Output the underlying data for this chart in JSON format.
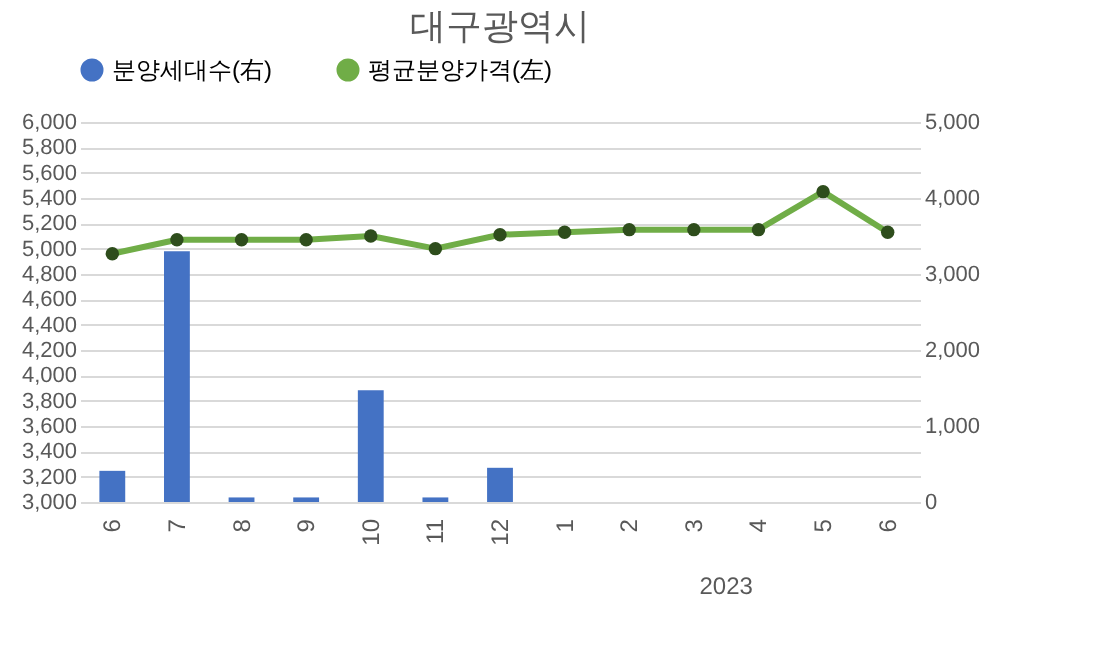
{
  "chart_data": {
    "type": "bar",
    "title": "대구광역시",
    "categories": [
      "6",
      "7",
      "8",
      "9",
      "10",
      "11",
      "12",
      "1",
      "2",
      "3",
      "4",
      "5",
      "6"
    ],
    "series": [
      {
        "name": "분양세대수(右)",
        "axis": "y2",
        "color": "#4472c4",
        "values": [
          410,
          3300,
          60,
          60,
          1470,
          60,
          450,
          null,
          null,
          null,
          null,
          null,
          null
        ]
      },
      {
        "name": "평균분양가격(左)",
        "type": "line",
        "axis": "y",
        "color": "#70ad47",
        "values": [
          4960,
          5070,
          5070,
          5070,
          5100,
          5000,
          5110,
          5130,
          5150,
          5150,
          5150,
          5450,
          5130
        ]
      }
    ],
    "ylim": [
      3000,
      6000
    ],
    "yticks": [
      {
        "value": 3000,
        "label": "3,000"
      },
      {
        "value": 3200,
        "label": "3,200"
      },
      {
        "value": 3400,
        "label": "3,400"
      },
      {
        "value": 3600,
        "label": "3,600"
      },
      {
        "value": 3800,
        "label": "3,800"
      },
      {
        "value": 4000,
        "label": "4,000"
      },
      {
        "value": 4200,
        "label": "4,200"
      },
      {
        "value": 4400,
        "label": "4,400"
      },
      {
        "value": 4600,
        "label": "4,600"
      },
      {
        "value": 4800,
        "label": "4,800"
      },
      {
        "value": 5000,
        "label": "5,000"
      },
      {
        "value": 5200,
        "label": "5,200"
      },
      {
        "value": 5400,
        "label": "5,400"
      },
      {
        "value": 5600,
        "label": "5,600"
      },
      {
        "value": 5800,
        "label": "5,800"
      },
      {
        "value": 6000,
        "label": "6,000"
      }
    ],
    "y2lim": [
      0,
      5000
    ],
    "y2ticks": [
      0,
      {
        "value": 1000,
        "label": "1,000"
      },
      {
        "value": 2000,
        "label": "2,000"
      },
      {
        "value": 3000,
        "label": "3,000"
      },
      {
        "value": 4000,
        "label": "4,000"
      },
      {
        "value": 5000,
        "label": "5,000"
      }
    ],
    "annotations": [
      "2023"
    ],
    "grid": "y",
    "legend": "top",
    "marker": "circle",
    "line_style": "solid"
  }
}
